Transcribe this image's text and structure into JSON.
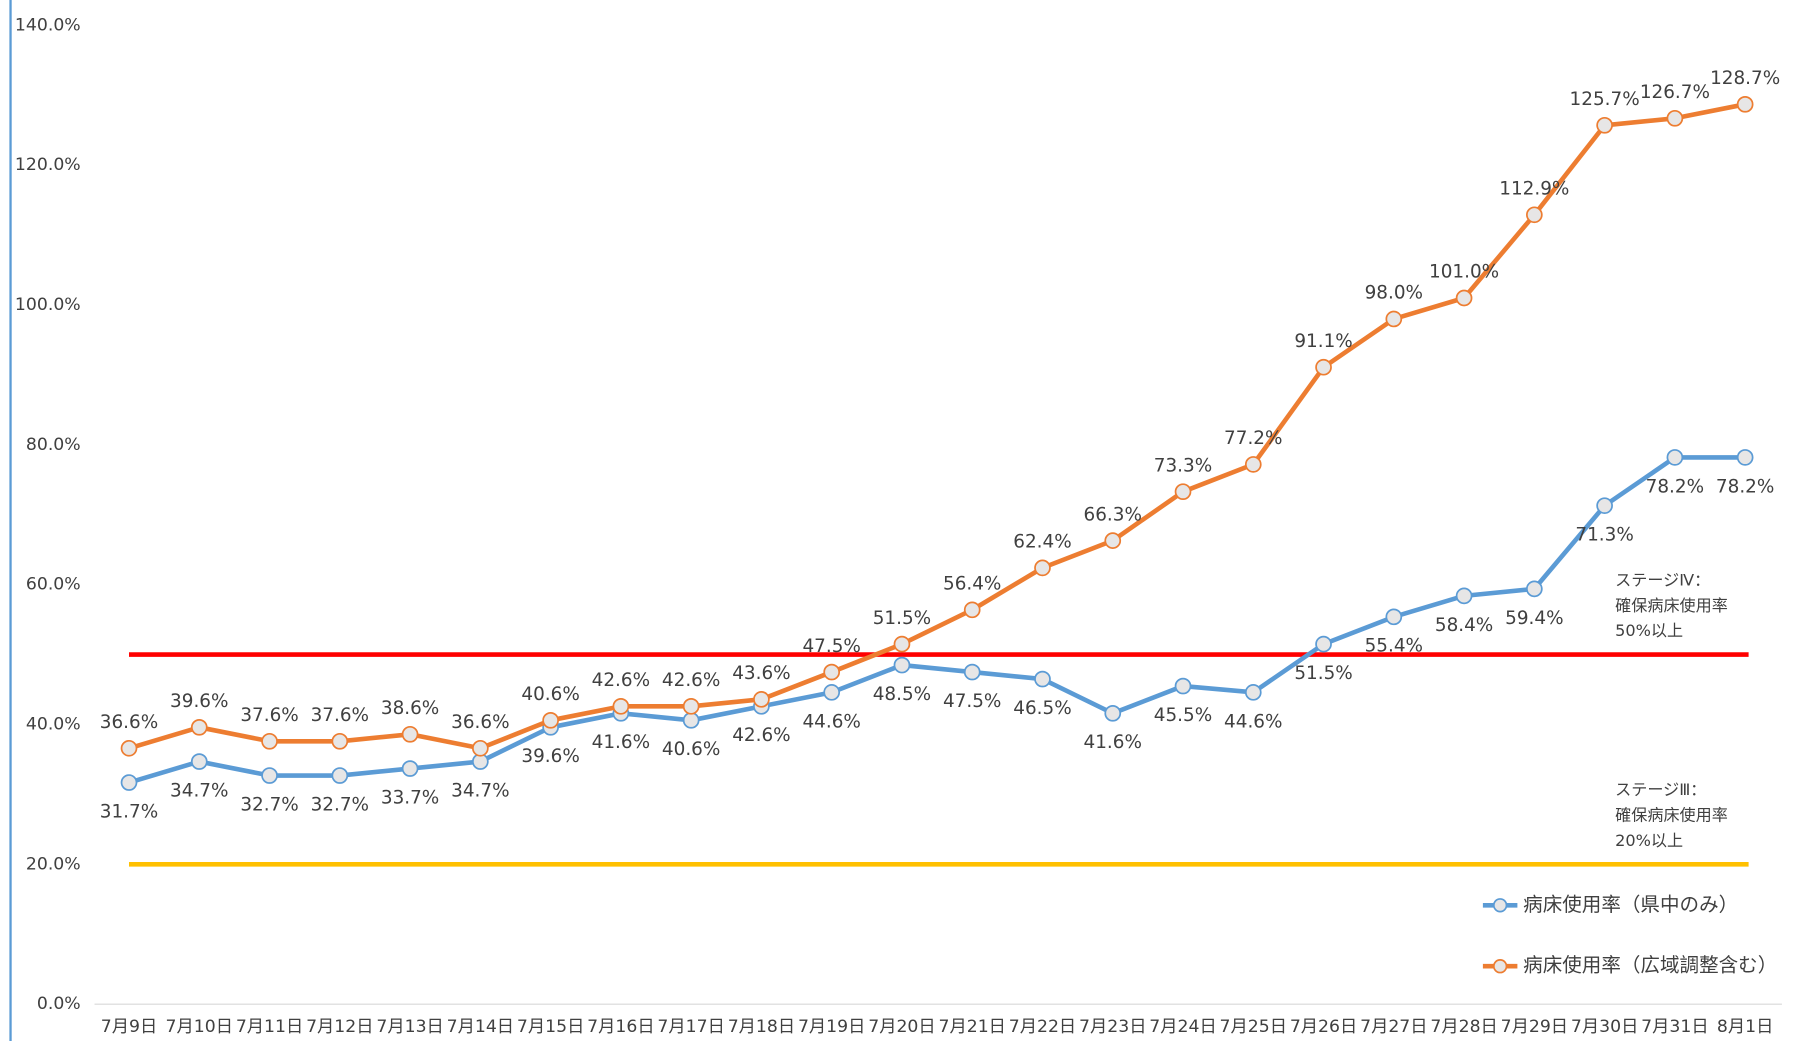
{
  "chart_data": {
    "type": "line",
    "categories": [
      "7月9日",
      "7月10日",
      "7月11日",
      "7月12日",
      "7月13日",
      "7月14日",
      "7月15日",
      "7月16日",
      "7月17日",
      "7月18日",
      "7月19日",
      "7月20日",
      "7月21日",
      "7月22日",
      "7月23日",
      "7月24日",
      "7月25日",
      "7月26日",
      "7月27日",
      "7月28日",
      "7月29日",
      "7月30日",
      "7月31日",
      "8月1日"
    ],
    "series": [
      {
        "name": "病床使用率（県中のみ）",
        "color": "#5b9bd5",
        "values": [
          31.7,
          34.7,
          32.7,
          32.7,
          33.7,
          34.7,
          39.6,
          41.6,
          40.6,
          42.6,
          44.6,
          48.5,
          47.5,
          46.5,
          41.6,
          45.5,
          44.6,
          51.5,
          55.4,
          58.4,
          59.4,
          71.3,
          78.2,
          78.2
        ],
        "value_labels": [
          "31.7%",
          "34.7%",
          "32.7%",
          "32.7%",
          "33.7%",
          "34.7%",
          "39.6%",
          "41.6%",
          "40.6%",
          "42.6%",
          "44.6%",
          "48.5%",
          "47.5%",
          "46.5%",
          "41.6%",
          "45.5%",
          "44.6%",
          "51.5%",
          "55.4%",
          "58.4%",
          "59.4%",
          "71.3%",
          "78.2%",
          "78.2%"
        ]
      },
      {
        "name": "病床使用率（広域調整含む）",
        "color": "#ed7d31",
        "values": [
          36.6,
          39.6,
          37.6,
          37.6,
          38.6,
          36.6,
          40.6,
          42.6,
          42.6,
          43.6,
          47.5,
          51.5,
          56.4,
          62.4,
          66.3,
          73.3,
          77.2,
          91.1,
          98.0,
          101.0,
          112.9,
          125.7,
          126.7,
          128.7
        ],
        "value_labels": [
          "36.6%",
          "39.6%",
          "37.6%",
          "37.6%",
          "38.6%",
          "36.6%",
          "40.6%",
          "42.6%",
          "42.6%",
          "43.6%",
          "47.5%",
          "51.5%",
          "56.4%",
          "62.4%",
          "66.3%",
          "73.3%",
          "77.2%",
          "91.1%",
          "98.0%",
          "101.0%",
          "112.9%",
          "125.7%",
          "126.7%",
          "128.7%"
        ]
      }
    ],
    "reference_lines": [
      {
        "value": 50,
        "color": "#ff0000",
        "label": [
          "ステージⅣ：",
          "確保病床使用率",
          "50%以上"
        ]
      },
      {
        "value": 20,
        "color": "#ffc000",
        "label": [
          "ステージⅢ：",
          "確保病床使用率",
          "20%以上"
        ]
      }
    ],
    "ylim": [
      0,
      140
    ],
    "yticks": [
      {
        "value": 0,
        "label": "0.0%"
      },
      {
        "value": 20,
        "label": "20.0%"
      },
      {
        "value": 40,
        "label": "40.0%"
      },
      {
        "value": 60,
        "label": "60.0%"
      },
      {
        "value": 80,
        "label": "80.0%"
      },
      {
        "value": 100,
        "label": "100.0%"
      },
      {
        "value": 120,
        "label": "120.0%"
      },
      {
        "value": 140,
        "label": "140.0%"
      }
    ],
    "grid": false,
    "legend": "lower right"
  }
}
